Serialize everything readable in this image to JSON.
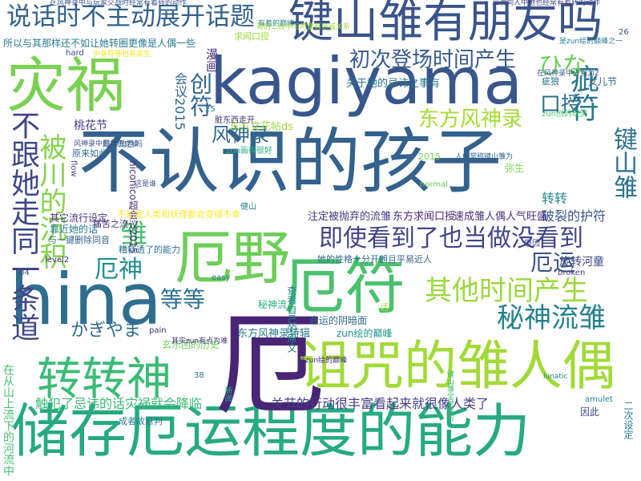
{
  "word_cloud": {
    "words": [
      {
        "text": "不认识的孩子",
        "color": "#34618d"
      },
      {
        "text": "储存厄运程度的能力",
        "color": "#26aa81"
      },
      {
        "text": "kagiyama",
        "color": "#39568c"
      },
      {
        "text": "hina",
        "color": "#2e6e8e"
      },
      {
        "text": "厄",
        "color": "#482575"
      },
      {
        "text": "厄野",
        "color": "#6dce58"
      },
      {
        "text": "厄符",
        "color": "#4ac16d"
      },
      {
        "text": "灾祸",
        "color": "#7ad151"
      },
      {
        "text": "诅咒的雏人偶",
        "color": "#a2da37"
      },
      {
        "text": "键山雏有朋友吗",
        "color": "#3a538b"
      },
      {
        "text": "说话时不主动展开话题",
        "color": "#33628d"
      },
      {
        "text": "转转神",
        "color": "#3bbb75"
      },
      {
        "text": "即使看到了也当做没看到",
        "color": "#414487"
      },
      {
        "text": "不跟她走同一条道",
        "color": "#3f4788"
      },
      {
        "text": "被川的沉积",
        "color": "#84d44b"
      },
      {
        "text": "其他时间产生",
        "color": "#9bd93c"
      },
      {
        "text": "秘神流雏",
        "color": "#26818e"
      },
      {
        "text": "初次登场时间产生",
        "color": "#38598c"
      },
      {
        "text": "疵符",
        "color": "#2a788e"
      },
      {
        "text": "东方风神录",
        "color": "#a5db36"
      },
      {
        "text": "口授",
        "color": "#2d708e"
      },
      {
        "text": "键山雏",
        "color": "#2c728e"
      },
      {
        "text": "风神录",
        "color": "#31688e"
      },
      {
        "text": "ひな",
        "color": "#6ccd5a"
      },
      {
        "text": "创符",
        "color": "#32658e"
      },
      {
        "text": "会议2015",
        "color": "#31668e"
      },
      {
        "text": "漫画",
        "color": "#4c2b7c"
      },
      {
        "text": "厄神",
        "color": "#21908d"
      },
      {
        "text": "厄运",
        "color": "#3b528b"
      },
      {
        "text": "雏",
        "color": "#4ac16d"
      },
      {
        "text": "等等",
        "color": "#2d718e"
      },
      {
        "text": "かぎやま",
        "color": "#306a8e"
      },
      {
        "text": "转转",
        "color": "#238a8d"
      },
      {
        "text": "旋转河童",
        "color": "#3e4a89"
      },
      {
        "text": "破裂的护符",
        "color": "#3a548c"
      },
      {
        "text": "关节的行动很丰富看起来就很像人类了",
        "color": "#433d84"
      },
      {
        "text": "触犯了忌讳的话灾祸就会降临",
        "color": "#3bbb75"
      },
      {
        "text": "在从山上流下的河流中",
        "color": "#44bf70"
      },
      {
        "text": "注定被抛弃的流雏",
        "color": "#453781"
      },
      {
        "text": "东方求闻口授",
        "color": "#482677"
      },
      {
        "text": "速成雏人偶人气旺盛",
        "color": "#472c7a"
      },
      {
        "text": "桃花节",
        "color": "#453882"
      },
      {
        "text": "秘神流",
        "color": "#29af7f"
      },
      {
        "text": "东方风神录特辑",
        "color": "#287c8e"
      },
      {
        "text": "命运的阴暗面",
        "color": "#31688e"
      },
      {
        "text": "zun绘的巅峰",
        "color": "#1f958b"
      },
      {
        "text": "niconico超会议2015",
        "color": "#472f7d"
      },
      {
        "text": "东方文花帖ds",
        "color": "#9dd93b"
      },
      {
        "text": "女儿节",
        "color": "#2f6c8e"
      },
      {
        "text": "关于她的忌讳之事有",
        "color": "#2c738e"
      },
      {
        "text": "所以与其那样还不如让她转圈更像是人偶一些",
        "color": "#2a788e"
      },
      {
        "text": "在风神录中与玩家交战时经常有着转的动作",
        "color": "#3b528b"
      },
      {
        "text": "其它流行设定",
        "color": "#46327e"
      },
      {
        "text": "与一键删除同音",
        "color": "#33638d"
      },
      {
        "text": "糟糕透了的能力",
        "color": "#2c718e"
      },
      {
        "text": "靠近她的话",
        "color": "#29798e"
      },
      {
        "text": "level2",
        "color": "#472a7a"
      },
      {
        "text": "是新角色吗",
        "color": "#2c728e"
      },
      {
        "text": "疵狼",
        "color": "#2b748e"
      },
      {
        "text": "求闻口授",
        "color": "#a0da39"
      },
      {
        "text": "原来如此",
        "color": "#31678e"
      },
      {
        "text": "弥生",
        "color": "#7cd250"
      },
      {
        "text": "easy",
        "color": "#2f6b8e"
      },
      {
        "text": "hard",
        "color": "#3e4989"
      },
      {
        "text": "lunatic",
        "color": "#26828e"
      },
      {
        "text": "broken",
        "color": "#414487"
      },
      {
        "text": "normal",
        "color": "#6ece58"
      },
      {
        "text": "amulet",
        "color": "#24868e"
      },
      {
        "text": "pain",
        "color": "#472c7a"
      },
      {
        "text": "flow",
        "color": "#3f4889"
      },
      {
        "text": "痛苦之流",
        "color": "#46327e"
      },
      {
        "text": "不论是人类和妖怪都会变得不幸",
        "color": "#fde725"
      },
      {
        "text": "原因",
        "color": "#3e4989"
      },
      {
        "text": "因此",
        "color": "#3e4989"
      },
      {
        "text": "新闻",
        "color": "#26ad81"
      },
      {
        "text": "健山",
        "color": "#26828e"
      },
      {
        "text": "二次设定",
        "color": "#287c8e"
      },
      {
        "text": "zun画得很好",
        "color": "#29af7f"
      },
      {
        "text": "zun创的玩笑",
        "color": "#4ac16d"
      },
      {
        "text": "这是谁",
        "color": "#3b528b"
      },
      {
        "text": "玄乐团的历史",
        "color": "#6ccd5a"
      },
      {
        "text": "她的性格十分开朗且平易近人",
        "color": "#31688e"
      },
      {
        "text": "查看自己的原文",
        "color": "#24878e"
      },
      {
        "text": "其实zun有点为难",
        "color": "#46337e"
      },
      {
        "text": "成者故意判",
        "color": "#2a788e"
      },
      {
        "text": "二次同人中她也经常有着转的动作",
        "color": "#404688"
      },
      {
        "text": "2015",
        "color": "#7ad151"
      },
      {
        "text": "26",
        "color": "#38598c"
      },
      {
        "text": "04",
        "color": "#3e4989"
      },
      {
        "text": "25",
        "color": "#26828e"
      },
      {
        "text": "38",
        "color": "#2d708e"
      },
      {
        "text": "话",
        "color": "#a8db34"
      },
      {
        "text": "脏东西走开",
        "color": "#46307e"
      },
      {
        "text": "键山雏全是我的",
        "color": "#3fbc73"
      },
      {
        "text": "有着的巅峰",
        "color": "#287c8e"
      },
      {
        "text": "在风神录中分别为2",
        "color": "#39568c"
      },
      {
        "text": "风神录中的角色立绘",
        "color": "#3e4989"
      },
      {
        "text": "人们常称键山雏为",
        "color": "#31688e"
      },
      {
        "text": "是zun绘的巅峰之一",
        "color": "#287d8e"
      },
      {
        "text": "是zun绘的巅峰",
        "color": "#472f7d"
      },
      {
        "text": "护身符等也有发生",
        "color": "#f1e51d"
      },
      {
        "text": "有的二设中与河童有亲戚关系",
        "color": "#a0da39"
      }
    ]
  }
}
